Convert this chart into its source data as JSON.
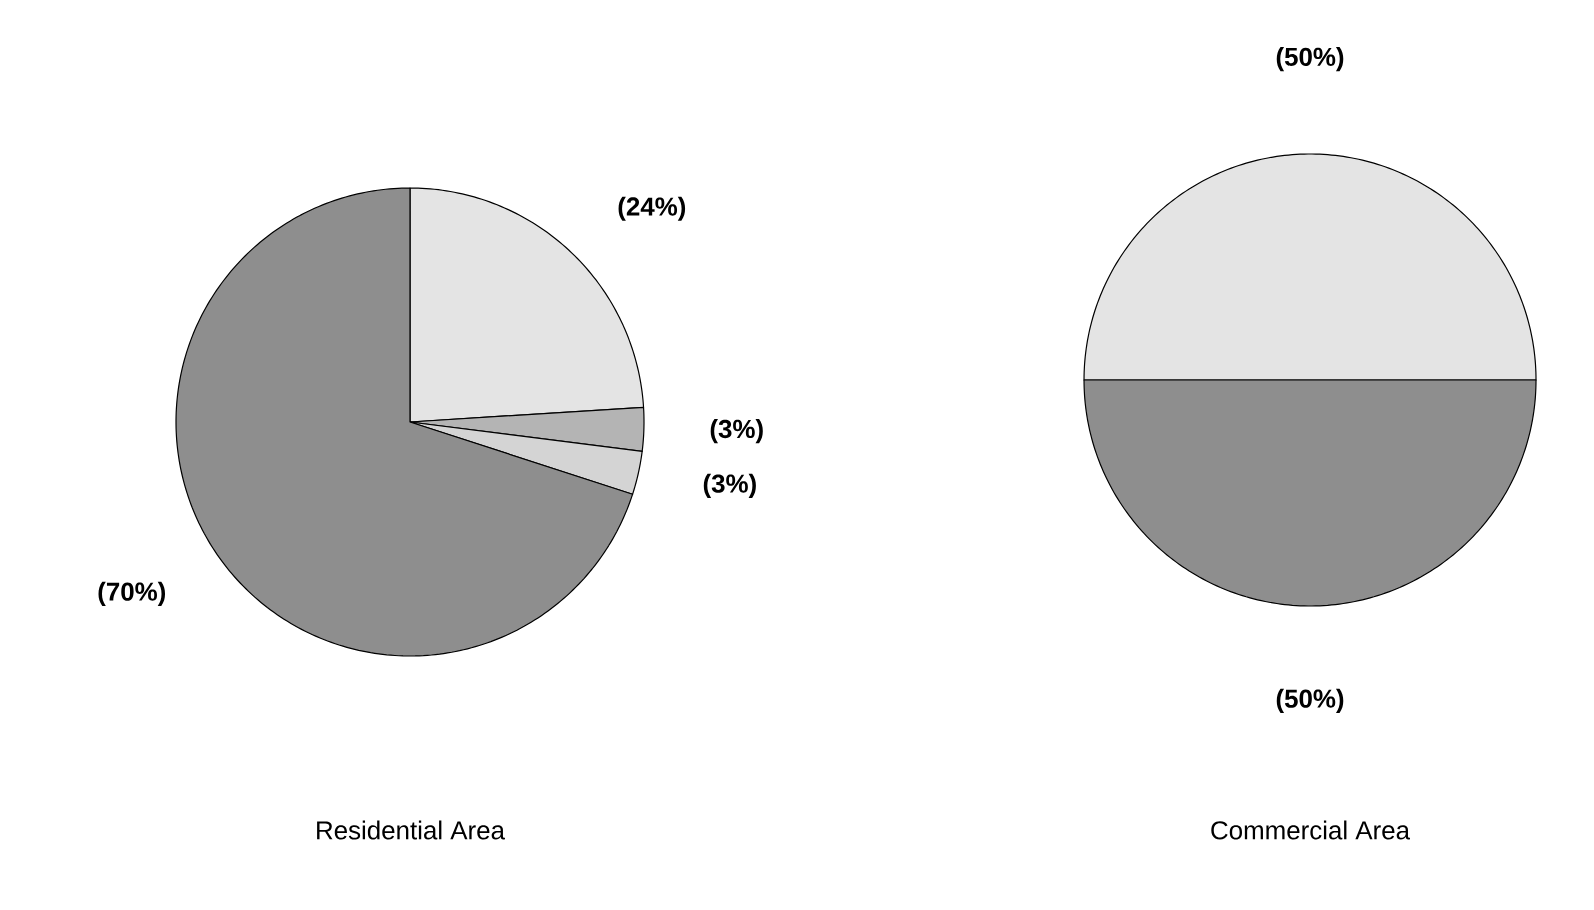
{
  "chart_data": [
    {
      "type": "pie",
      "title": "Residential Area",
      "categories": [
        null,
        null,
        null,
        null
      ],
      "values": [
        24,
        3,
        3,
        70
      ],
      "colors": [
        "#e4e4e4",
        "#b4b4b4",
        "#d4d4d4",
        "#8e8e8e"
      ],
      "value_labels": [
        "(24%)",
        "(3%)",
        "(3%)",
        "(70%)"
      ]
    },
    {
      "type": "pie",
      "title": "Commercial Area",
      "categories": [
        null,
        null
      ],
      "values": [
        50,
        50
      ],
      "colors": [
        "#e4e4e4",
        "#8e8e8e"
      ],
      "value_labels": [
        "(50%)",
        "(50%)"
      ]
    }
  ]
}
